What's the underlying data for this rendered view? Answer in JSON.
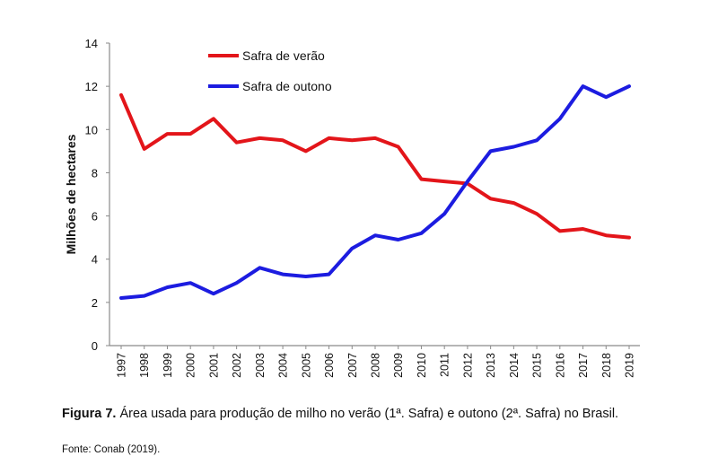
{
  "chart_data": {
    "type": "line",
    "ylabel": "Milhões de hectares",
    "xlabel": "",
    "ylim": [
      0,
      14
    ],
    "yticks": [
      0,
      2,
      4,
      6,
      8,
      10,
      12,
      14
    ],
    "x": [
      "1997",
      "1998",
      "1999",
      "2000",
      "2001",
      "2002",
      "2003",
      "2004",
      "2005",
      "2006",
      "2007",
      "2008",
      "2009",
      "2010",
      "2011",
      "2012",
      "2013",
      "2014",
      "2015",
      "2016",
      "2017",
      "2018",
      "2019"
    ],
    "legend_position": "top-center",
    "grid": false,
    "series": [
      {
        "name": "Safra de verão",
        "color": "#e3151a",
        "values": [
          11.6,
          9.1,
          9.8,
          9.8,
          10.5,
          9.4,
          9.6,
          9.5,
          9.0,
          9.6,
          9.5,
          9.6,
          9.2,
          7.7,
          7.6,
          7.5,
          6.8,
          6.6,
          6.1,
          5.3,
          5.4,
          5.1,
          5.0
        ]
      },
      {
        "name": "Safra de outono",
        "color": "#1c1ce0",
        "values": [
          2.2,
          2.3,
          2.7,
          2.9,
          2.4,
          2.9,
          3.6,
          3.3,
          3.2,
          3.3,
          4.5,
          5.1,
          4.9,
          5.2,
          6.1,
          7.6,
          9.0,
          9.2,
          9.5,
          10.5,
          12.0,
          11.5,
          12.0
        ]
      }
    ]
  },
  "caption": {
    "label": "Figura 7.",
    "text": " Área usada para produção de milho no verão (1ª. Safra) e outono (2ª. Safra) no Brasil."
  },
  "source": "Fonte: Conab (2019)."
}
